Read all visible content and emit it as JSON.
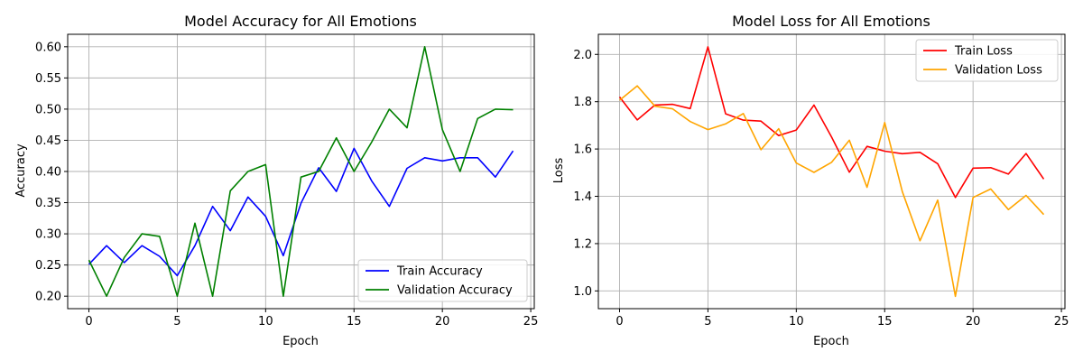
{
  "chart_data": [
    {
      "type": "line",
      "title": "Model Accuracy for All Emotions",
      "xlabel": "Epoch",
      "ylabel": "Accuracy",
      "x": [
        0,
        1,
        2,
        3,
        4,
        5,
        6,
        7,
        8,
        9,
        10,
        11,
        12,
        13,
        14,
        15,
        16,
        17,
        18,
        19,
        20,
        21,
        22,
        23,
        24
      ],
      "xlim": [
        -1.2,
        25.2
      ],
      "ylim": [
        0.18,
        0.62
      ],
      "xticks": [
        0,
        5,
        10,
        15,
        20,
        25
      ],
      "xtick_labels": [
        "0",
        "5",
        "10",
        "15",
        "20",
        "25"
      ],
      "yticks": [
        0.2,
        0.25,
        0.3,
        0.35,
        0.4,
        0.45,
        0.5,
        0.55,
        0.6
      ],
      "ytick_labels": [
        "0.20",
        "0.25",
        "0.30",
        "0.35",
        "0.40",
        "0.45",
        "0.50",
        "0.55",
        "0.60"
      ],
      "grid": true,
      "legend_position": "lower-right",
      "series": [
        {
          "name": "Train Accuracy",
          "color": "#0000ff",
          "values": [
            0.251,
            0.281,
            0.254,
            0.281,
            0.264,
            0.233,
            0.281,
            0.344,
            0.305,
            0.359,
            0.328,
            0.265,
            0.349,
            0.406,
            0.368,
            0.437,
            0.385,
            0.344,
            0.405,
            0.422,
            0.417,
            0.422,
            0.422,
            0.391,
            0.433
          ]
        },
        {
          "name": "Validation Accuracy",
          "color": "#008000",
          "values": [
            0.258,
            0.2,
            0.262,
            0.3,
            0.296,
            0.2,
            0.317,
            0.2,
            0.369,
            0.4,
            0.411,
            0.2,
            0.391,
            0.4,
            0.454,
            0.4,
            0.447,
            0.5,
            0.47,
            0.6,
            0.467,
            0.4,
            0.485,
            0.5,
            0.499
          ]
        }
      ]
    },
    {
      "type": "line",
      "title": "Model Loss for All Emotions",
      "xlabel": "Epoch",
      "ylabel": "Loss",
      "x": [
        0,
        1,
        2,
        3,
        4,
        5,
        6,
        7,
        8,
        9,
        10,
        11,
        12,
        13,
        14,
        15,
        16,
        17,
        18,
        19,
        20,
        21,
        22,
        23,
        24
      ],
      "xlim": [
        -1.2,
        25.2
      ],
      "ylim": [
        0.925,
        2.085
      ],
      "xticks": [
        0,
        5,
        10,
        15,
        20,
        25
      ],
      "xtick_labels": [
        "0",
        "5",
        "10",
        "15",
        "20",
        "25"
      ],
      "yticks": [
        1.0,
        1.2,
        1.4,
        1.6,
        1.8,
        2.0
      ],
      "ytick_labels": [
        "1.0",
        "1.2",
        "1.4",
        "1.6",
        "1.8",
        "2.0"
      ],
      "grid": true,
      "legend_position": "upper-right",
      "series": [
        {
          "name": "Train Loss",
          "color": "#ff0000",
          "values": [
            1.82,
            1.723,
            1.786,
            1.789,
            1.771,
            2.032,
            1.749,
            1.722,
            1.718,
            1.657,
            1.68,
            1.786,
            1.65,
            1.502,
            1.611,
            1.591,
            1.58,
            1.586,
            1.538,
            1.395,
            1.519,
            1.521,
            1.494,
            1.581,
            1.473
          ]
        },
        {
          "name": "Validation Loss",
          "color": "#ffa500",
          "values": [
            1.806,
            1.867,
            1.781,
            1.77,
            1.716,
            1.682,
            1.706,
            1.75,
            1.597,
            1.686,
            1.541,
            1.501,
            1.544,
            1.637,
            1.438,
            1.712,
            1.42,
            1.212,
            1.384,
            0.977,
            1.395,
            1.431,
            1.344,
            1.404,
            1.323
          ]
        }
      ]
    }
  ]
}
